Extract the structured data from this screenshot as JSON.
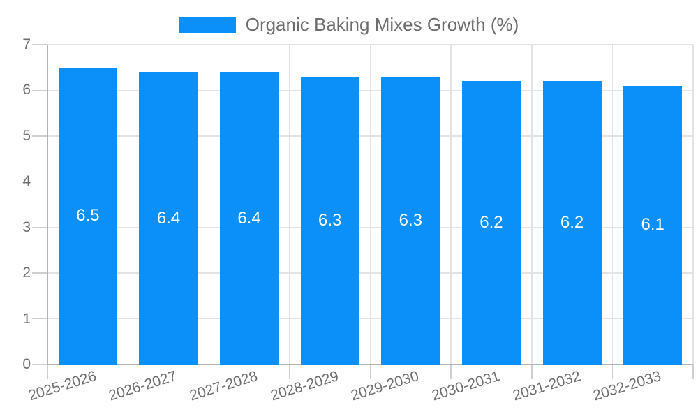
{
  "legend": {
    "label": "Organic Baking Mixes Growth (%)"
  },
  "chart_data": {
    "type": "bar",
    "title": "Organic Baking Mixes Growth (%)",
    "categories": [
      "2025-2026",
      "2026-2027",
      "2027-2028",
      "2028-2029",
      "2029-2030",
      "2030-2031",
      "2031-2032",
      "2032-2033"
    ],
    "values": [
      6.5,
      6.4,
      6.4,
      6.3,
      6.3,
      6.2,
      6.2,
      6.1
    ],
    "bar_labels": [
      "6.5",
      "6.4",
      "6.4",
      "6.3",
      "6.3",
      "6.2",
      "6.2",
      "6.1"
    ],
    "xlabel": "",
    "ylabel": "",
    "ylim": [
      0,
      7
    ],
    "y_ticks": [
      0,
      1,
      2,
      3,
      4,
      5,
      6,
      7
    ],
    "y_tick_labels": [
      "0",
      "1",
      "2",
      "3",
      "4",
      "5",
      "6",
      "7"
    ],
    "grid": true,
    "legend_position": "top-center",
    "colors": {
      "bar": "#0a90f8",
      "bar_label": "#ffffff",
      "legend_text": "#6d6d6d",
      "axis_text": "#6e6e6e",
      "gridline": "#e3e3e3",
      "tick": "#cfcfcf",
      "axis_line": "#b5b5b5",
      "background": "#ffffff"
    }
  }
}
